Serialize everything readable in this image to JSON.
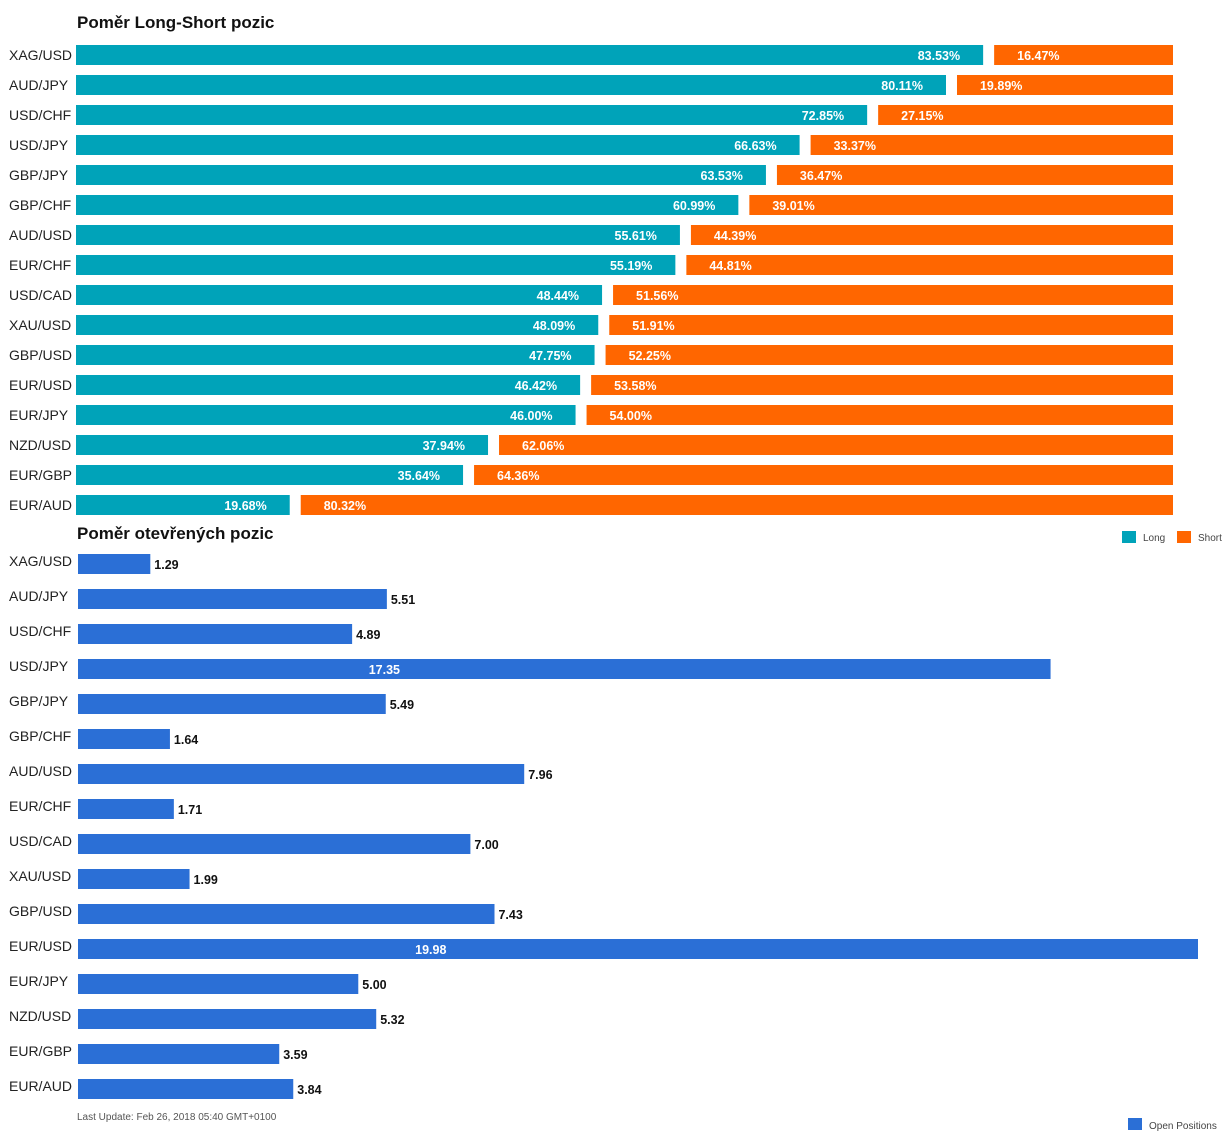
{
  "colors": {
    "long": "#00a3b9",
    "short": "#ff6600",
    "open": "#2b6fd6"
  },
  "chart_data": [
    {
      "type": "bar",
      "orientation": "horizontal",
      "stacked": true,
      "title": "Poměr Long-Short pozic",
      "categories": [
        "XAG/USD",
        "AUD/JPY",
        "USD/CHF",
        "USD/JPY",
        "GBP/JPY",
        "GBP/CHF",
        "AUD/USD",
        "EUR/CHF",
        "USD/CAD",
        "XAU/USD",
        "GBP/USD",
        "EUR/USD",
        "EUR/JPY",
        "NZD/USD",
        "EUR/GBP",
        "EUR/AUD"
      ],
      "series": [
        {
          "name": "Long",
          "values": [
            83.53,
            80.11,
            72.85,
            66.63,
            63.53,
            60.99,
            55.61,
            55.19,
            48.44,
            48.09,
            47.75,
            46.42,
            46.0,
            37.94,
            35.64,
            19.68
          ]
        },
        {
          "name": "Short",
          "values": [
            16.47,
            19.89,
            27.15,
            33.37,
            36.47,
            39.01,
            44.39,
            44.81,
            51.56,
            51.91,
            52.25,
            53.58,
            54.0,
            62.06,
            64.36,
            80.32
          ]
        }
      ],
      "labels": {
        "Long": [
          "83.53%",
          "80.11%",
          "72.85%",
          "66.63%",
          "63.53%",
          "60.99%",
          "55.61%",
          "55.19%",
          "48.44%",
          "48.09%",
          "47.75%",
          "46.42%",
          "46.00%",
          "37.94%",
          "35.64%",
          "19.68%"
        ],
        "Short": [
          "16.47%",
          "19.89%",
          "27.15%",
          "33.37%",
          "36.47%",
          "39.01%",
          "44.39%",
          "44.81%",
          "51.56%",
          "51.91%",
          "52.25%",
          "53.58%",
          "54.00%",
          "62.06%",
          "64.36%",
          "80.32%"
        ]
      },
      "xlim": [
        0,
        100
      ],
      "legend": {
        "position": "bottom-right",
        "entries": [
          "Long",
          "Short"
        ]
      },
      "grid": false
    },
    {
      "type": "bar",
      "orientation": "horizontal",
      "title": "Poměr otevřených pozic",
      "categories": [
        "XAG/USD",
        "AUD/JPY",
        "USD/CHF",
        "USD/JPY",
        "GBP/JPY",
        "GBP/CHF",
        "AUD/USD",
        "EUR/CHF",
        "USD/CAD",
        "XAU/USD",
        "GBP/USD",
        "EUR/USD",
        "EUR/JPY",
        "NZD/USD",
        "EUR/GBP",
        "EUR/AUD"
      ],
      "series": [
        {
          "name": "Open Positions",
          "values": [
            1.29,
            5.51,
            4.89,
            17.35,
            5.49,
            1.64,
            7.96,
            1.71,
            7.0,
            1.99,
            7.43,
            19.98,
            5.0,
            5.32,
            3.59,
            3.84
          ]
        }
      ],
      "labels": [
        "1.29",
        "5.51",
        "4.89",
        "17.35",
        "5.49",
        "1.64",
        "7.96",
        "1.71",
        "7.00",
        "1.99",
        "7.43",
        "19.98",
        "5.00",
        "5.32",
        "3.59",
        "3.84"
      ],
      "xlim": [
        0,
        20
      ],
      "legend": {
        "position": "bottom-right",
        "entries": [
          "Open Positions"
        ]
      },
      "grid": false
    }
  ],
  "footer": {
    "last_update": "Last Update: Feb 26, 2018 05:40 GMT+0100"
  }
}
